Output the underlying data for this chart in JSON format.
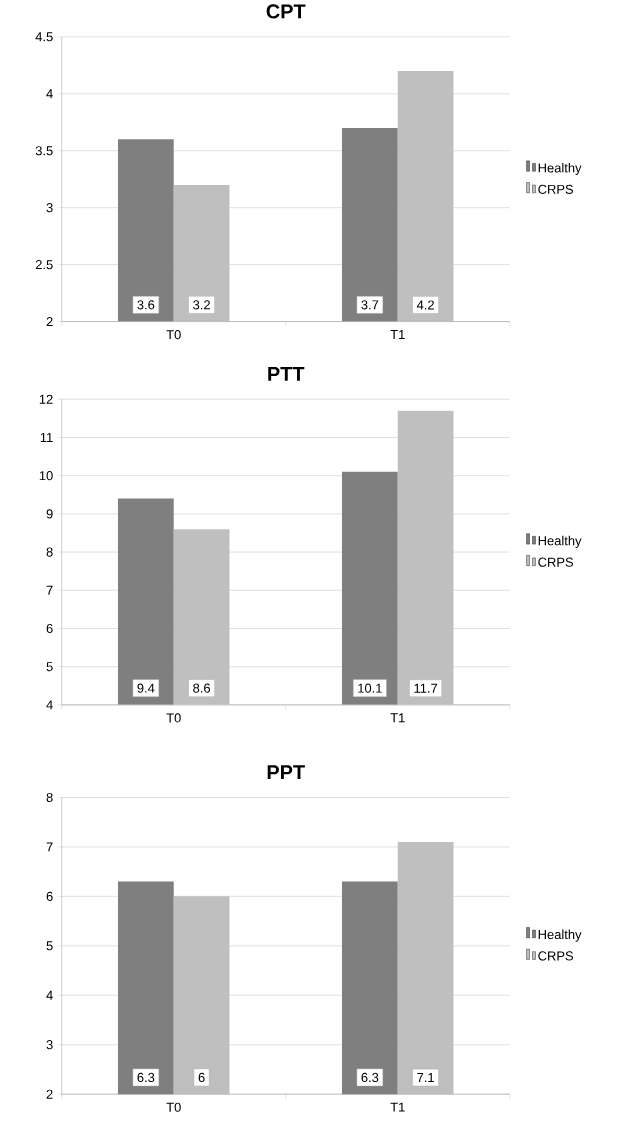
{
  "chart_data": [
    {
      "type": "bar",
      "title": "CPT",
      "categories": [
        "T0",
        "T1"
      ],
      "series": [
        {
          "name": "Healthy",
          "color": "#7f7f7f",
          "values": [
            3.6,
            3.7
          ]
        },
        {
          "name": "CRPS",
          "color": "#bfbfbf",
          "values": [
            3.2,
            4.2
          ]
        }
      ],
      "ylim": [
        2,
        4.5
      ],
      "yticks": [
        2,
        2.5,
        3,
        3.5,
        4,
        4.5
      ],
      "grid": "y",
      "legend": "right",
      "data_labels": true
    },
    {
      "type": "bar",
      "title": "PTT",
      "categories": [
        "T0",
        "T1"
      ],
      "series": [
        {
          "name": "Healthy",
          "color": "#7f7f7f",
          "values": [
            9.4,
            10.1
          ]
        },
        {
          "name": "CRPS",
          "color": "#bfbfbf",
          "values": [
            8.6,
            11.7
          ]
        }
      ],
      "ylim": [
        4,
        12
      ],
      "yticks": [
        4,
        5,
        6,
        7,
        8,
        9,
        10,
        11,
        12
      ],
      "grid": "y",
      "legend": "right",
      "data_labels": true
    },
    {
      "type": "bar",
      "title": "PPT",
      "categories": [
        "T0",
        "T1"
      ],
      "series": [
        {
          "name": "Healthy",
          "color": "#7f7f7f",
          "values": [
            6.3,
            6.3
          ]
        },
        {
          "name": "CRPS",
          "color": "#bfbfbf",
          "values": [
            6,
            7.1
          ]
        }
      ],
      "ylim": [
        2,
        8
      ],
      "yticks": [
        2,
        3,
        4,
        5,
        6,
        7,
        8
      ],
      "grid": "y",
      "legend": "right",
      "data_labels": true
    }
  ]
}
